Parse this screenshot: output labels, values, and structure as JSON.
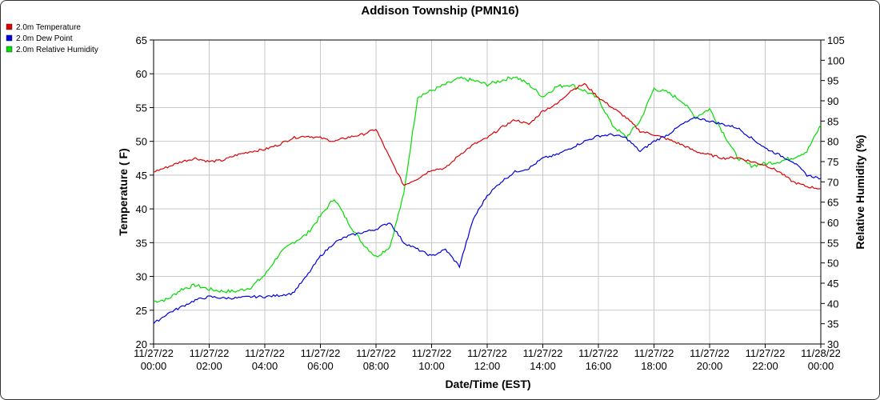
{
  "chart_data": {
    "type": "line",
    "title": "Addison Township (PMN16)",
    "xlabel": "Date/Time (EST)",
    "ylabel": "Temperature ( F)",
    "y2label": "Relative Humidity (%)",
    "ylim": [
      20,
      65
    ],
    "y2lim": [
      30,
      105
    ],
    "grid": true,
    "legend_position": "top-left",
    "x_ticks": [
      {
        "date": "11/27/22",
        "time": "00:00"
      },
      {
        "date": "11/27/22",
        "time": "02:00"
      },
      {
        "date": "11/27/22",
        "time": "04:00"
      },
      {
        "date": "11/27/22",
        "time": "06:00"
      },
      {
        "date": "11/27/22",
        "time": "08:00"
      },
      {
        "date": "11/27/22",
        "time": "10:00"
      },
      {
        "date": "11/27/22",
        "time": "12:00"
      },
      {
        "date": "11/27/22",
        "time": "14:00"
      },
      {
        "date": "11/27/22",
        "time": "16:00"
      },
      {
        "date": "11/27/22",
        "time": "18:00"
      },
      {
        "date": "11/27/22",
        "time": "20:00"
      },
      {
        "date": "11/27/22",
        "time": "22:00"
      },
      {
        "date": "11/28/22",
        "time": "00:00"
      }
    ],
    "y_ticks": [
      20,
      25,
      30,
      35,
      40,
      45,
      50,
      55,
      60,
      65
    ],
    "y2_ticks": [
      30,
      35,
      40,
      45,
      50,
      55,
      60,
      65,
      70,
      75,
      80,
      85,
      90,
      95,
      100,
      105
    ],
    "x_hours": [
      0,
      0.5,
      1,
      1.5,
      2,
      2.5,
      3,
      3.5,
      4,
      4.5,
      5,
      5.5,
      6,
      6.5,
      7,
      7.5,
      8,
      8.5,
      9,
      9.5,
      10,
      10.5,
      11,
      11.5,
      12,
      12.5,
      13,
      13.5,
      14,
      14.5,
      15,
      15.5,
      16,
      16.5,
      17,
      17.5,
      18,
      18.5,
      19,
      19.5,
      20,
      20.5,
      21,
      21.5,
      22,
      22.5,
      23,
      23.5,
      24
    ],
    "series": [
      {
        "name": "2.0m Temperature",
        "color": "#dd0000",
        "axis": "left",
        "values": [
          45.5,
          46.2,
          47.0,
          47.5,
          47.0,
          47.2,
          48.0,
          48.5,
          48.8,
          49.5,
          50.5,
          50.8,
          50.5,
          50.0,
          50.6,
          51.0,
          51.8,
          47.5,
          43.5,
          44.5,
          45.8,
          46.0,
          48.0,
          49.5,
          50.5,
          52.0,
          53.2,
          52.5,
          54.5,
          55.5,
          57.5,
          58.5,
          56.5,
          55.0,
          53.5,
          51.5,
          51.0,
          50.3,
          49.5,
          48.5,
          48.0,
          47.5,
          47.6,
          47.0,
          46.5,
          45.5,
          44.0,
          43.3,
          43.0
        ]
      },
      {
        "name": "2.0m Dew Point",
        "color": "#0000dd",
        "axis": "left",
        "values": [
          23.0,
          24.5,
          25.5,
          26.5,
          27.0,
          26.8,
          26.8,
          27.0,
          27.0,
          27.2,
          27.5,
          30.0,
          33.0,
          35.0,
          36.0,
          36.5,
          37.0,
          38.0,
          35.0,
          34.0,
          33.0,
          34.0,
          31.5,
          38.5,
          42.0,
          44.0,
          45.5,
          46.0,
          47.5,
          48.0,
          49.0,
          50.0,
          50.8,
          51.0,
          50.5,
          48.5,
          50.0,
          51.0,
          52.5,
          53.5,
          53.0,
          52.5,
          52.0,
          50.5,
          49.0,
          48.0,
          47.0,
          45.0,
          44.5
        ]
      },
      {
        "name": "2.0m Relative Humidity",
        "color": "#00dd00",
        "axis": "right",
        "values": [
          40.5,
          41.0,
          43.5,
          44.5,
          43.5,
          43.0,
          43.0,
          44.0,
          47.0,
          52.0,
          55.0,
          57.0,
          61.5,
          66.0,
          60.0,
          55.0,
          51.5,
          54.0,
          67.0,
          91.0,
          92.5,
          94.0,
          95.5,
          95.0,
          94.0,
          95.0,
          96.0,
          94.0,
          91.0,
          93.5,
          94.0,
          92.5,
          90.5,
          84.0,
          81.0,
          85.0,
          93.0,
          92.0,
          90.0,
          86.0,
          88.0,
          82.0,
          76.0,
          74.0,
          74.5,
          75.0,
          76.0,
          77.5,
          84.0
        ]
      }
    ]
  }
}
